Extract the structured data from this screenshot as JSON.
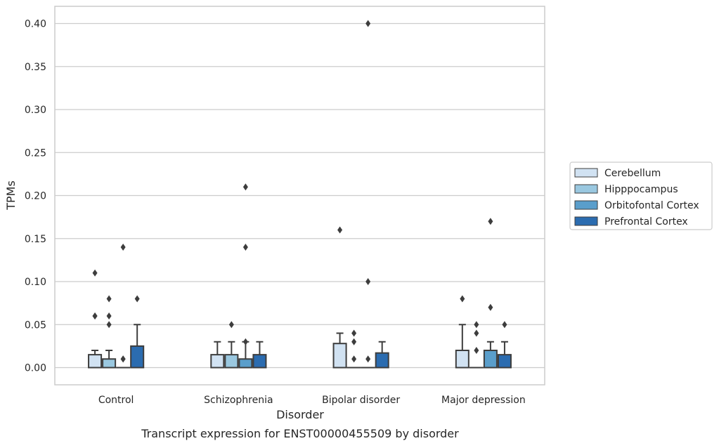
{
  "chart_data": {
    "type": "box",
    "caption": "Transcript expression for ENST00000455509 by disorder",
    "xlabel": "Disorder",
    "ylabel": "TPMs",
    "ylim": [
      -0.02,
      0.42
    ],
    "yticks": [
      0.0,
      0.05,
      0.1,
      0.15,
      0.2,
      0.25,
      0.3,
      0.35,
      0.4
    ],
    "ytick_labels": [
      "0.00",
      "0.05",
      "0.10",
      "0.15",
      "0.20",
      "0.25",
      "0.30",
      "0.35",
      "0.40"
    ],
    "grid": "horizontal",
    "legend_position": "right",
    "categories": [
      "Control",
      "Schizophrenia",
      "Bipolar disorder",
      "Major depression"
    ],
    "series": [
      {
        "name": "Cerebellum",
        "color": "#d1e2f2",
        "boxes": [
          {
            "q1": 0.0,
            "median": 0.0,
            "q3": 0.015,
            "whisker_low": 0.0,
            "whisker_high": 0.02,
            "outliers": [
              0.06,
              0.06,
              0.11
            ]
          },
          {
            "q1": 0.0,
            "median": 0.0,
            "q3": 0.015,
            "whisker_low": 0.0,
            "whisker_high": 0.03,
            "outliers": []
          },
          {
            "q1": 0.0,
            "median": 0.0,
            "q3": 0.028,
            "whisker_low": 0.0,
            "whisker_high": 0.04,
            "outliers": [
              0.16
            ]
          },
          {
            "q1": 0.0,
            "median": 0.0,
            "q3": 0.02,
            "whisker_low": 0.0,
            "whisker_high": 0.05,
            "outliers": [
              0.08
            ]
          }
        ]
      },
      {
        "name": "Hipppocampus",
        "color": "#9ac8e0",
        "boxes": [
          {
            "q1": 0.0,
            "median": 0.0,
            "q3": 0.01,
            "whisker_low": 0.0,
            "whisker_high": 0.02,
            "outliers": [
              0.05,
              0.06,
              0.08
            ]
          },
          {
            "q1": 0.0,
            "median": 0.0,
            "q3": 0.015,
            "whisker_low": 0.0,
            "whisker_high": 0.03,
            "outliers": [
              0.05
            ]
          },
          {
            "q1": 0.0,
            "median": 0.0,
            "q3": 0.0,
            "whisker_low": 0.0,
            "whisker_high": 0.0,
            "outliers": [
              0.01,
              0.03,
              0.04
            ]
          },
          {
            "q1": 0.0,
            "median": 0.0,
            "q3": 0.0,
            "whisker_low": 0.0,
            "whisker_high": 0.0,
            "outliers": [
              0.02,
              0.04,
              0.05
            ]
          }
        ]
      },
      {
        "name": "Orbitofontal Cortex",
        "color": "#5a9ecb",
        "boxes": [
          {
            "q1": 0.0,
            "median": 0.0,
            "q3": 0.0,
            "whisker_low": 0.0,
            "whisker_high": 0.0,
            "outliers": [
              0.01,
              0.01,
              0.14
            ]
          },
          {
            "q1": 0.0,
            "median": 0.0,
            "q3": 0.01,
            "whisker_low": 0.0,
            "whisker_high": 0.03,
            "outliers": [
              0.03,
              0.14,
              0.21
            ]
          },
          {
            "q1": 0.0,
            "median": 0.0,
            "q3": 0.0,
            "whisker_low": 0.0,
            "whisker_high": 0.0,
            "outliers": [
              0.01,
              0.1,
              0.4
            ]
          },
          {
            "q1": 0.0,
            "median": 0.0,
            "q3": 0.02,
            "whisker_low": 0.0,
            "whisker_high": 0.03,
            "outliers": [
              0.07,
              0.17
            ]
          }
        ]
      },
      {
        "name": "Prefrontal Cortex",
        "color": "#2b6cb0",
        "boxes": [
          {
            "q1": 0.0,
            "median": 0.0,
            "q3": 0.025,
            "whisker_low": 0.0,
            "whisker_high": 0.05,
            "outliers": [
              0.08
            ]
          },
          {
            "q1": 0.0,
            "median": 0.0,
            "q3": 0.015,
            "whisker_low": 0.0,
            "whisker_high": 0.03,
            "outliers": []
          },
          {
            "q1": 0.0,
            "median": 0.0,
            "q3": 0.017,
            "whisker_low": 0.0,
            "whisker_high": 0.03,
            "outliers": []
          },
          {
            "q1": 0.0,
            "median": 0.0,
            "q3": 0.015,
            "whisker_low": 0.0,
            "whisker_high": 0.03,
            "outliers": [
              0.05
            ]
          }
        ]
      }
    ],
    "style": {
      "grid_color": "#cccccc",
      "spine_color": "#cccccc",
      "box_edge_color": "#3d3d3d",
      "outlier_color": "#3d3d3d"
    }
  }
}
